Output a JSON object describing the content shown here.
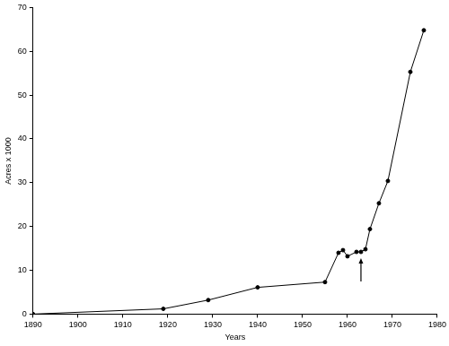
{
  "chart_data": {
    "type": "line",
    "x_label": "Years",
    "y_label": "Acres x 1000",
    "x": [
      1890,
      1919,
      1929,
      1940,
      1955,
      1958,
      1959,
      1960,
      1962,
      1963,
      1964,
      1965,
      1967,
      1969,
      1974,
      1977
    ],
    "values": [
      0,
      1.2,
      3.2,
      6.1,
      7.3,
      14,
      14.6,
      13.2,
      14.2,
      14.2,
      14.8,
      19.4,
      25.3,
      30.4,
      55.3,
      64.8
    ],
    "color": "#000000",
    "marker": "circle",
    "line_style": "solid",
    "xlim": [
      1890,
      1980
    ],
    "xticks": [
      1890,
      1900,
      1910,
      1920,
      1930,
      1940,
      1950,
      1960,
      1970,
      1980
    ],
    "ylim": [
      0,
      70
    ],
    "yticks": [
      0,
      10,
      20,
      30,
      40,
      50,
      60,
      70
    ],
    "grid": false,
    "arrow_at": 1963
  }
}
